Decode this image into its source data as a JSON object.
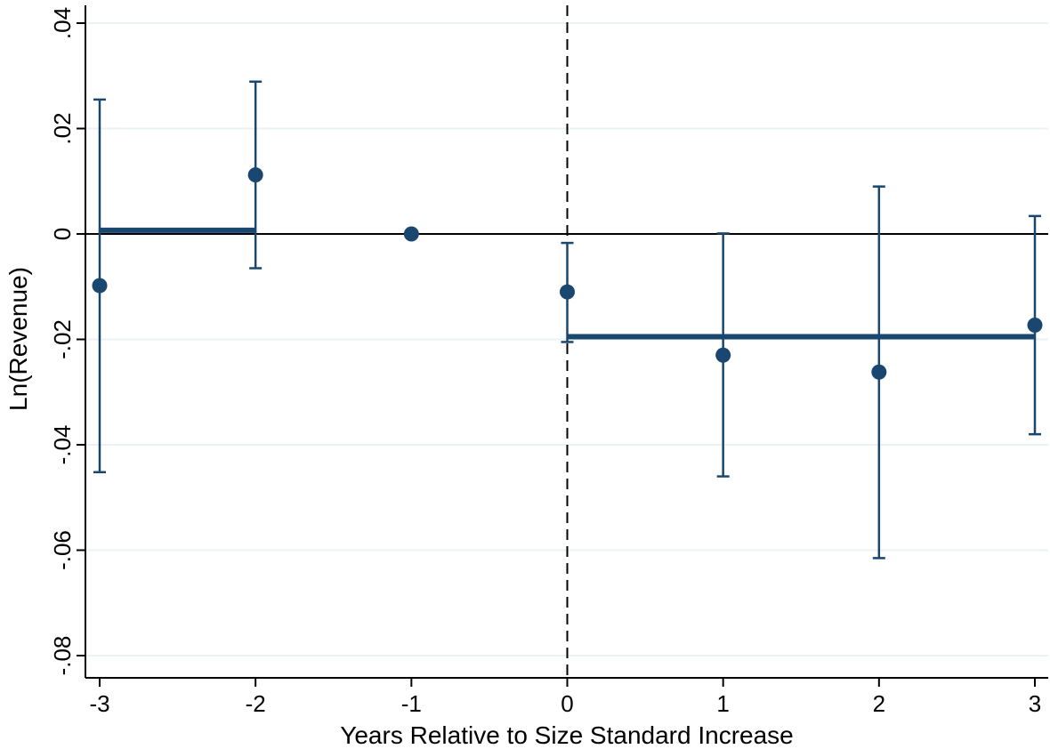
{
  "chart_data": {
    "type": "scatter",
    "title": "",
    "xlabel": "Years Relative to Size Standard Increase",
    "ylabel": "Ln(Revenue)",
    "xlim": [
      -3,
      3
    ],
    "ylim": [
      -0.08,
      0.04
    ],
    "x_ticks": [
      -3,
      -2,
      -1,
      0,
      1,
      2,
      3
    ],
    "x_tick_labels": [
      "-3",
      "-2",
      "-1",
      "0",
      "1",
      "2",
      "3"
    ],
    "y_ticks": [
      0.04,
      0.02,
      0,
      -0.02,
      -0.04,
      -0.06,
      -0.08
    ],
    "y_tick_labels": [
      ".04",
      ".02",
      "0",
      "-.02",
      "-.04",
      "-.06",
      "-.08"
    ],
    "grid": "horizontal",
    "legend": "none",
    "reference_lines": {
      "horizontal_y": 0,
      "vertical_x": 0,
      "vertical_style": "dashed"
    },
    "series": [
      {
        "points": [
          {
            "x": -3,
            "y": -0.0098,
            "ci_low": -0.0452,
            "ci_high": 0.0255
          },
          {
            "x": -2,
            "y": 0.0112,
            "ci_low": -0.0065,
            "ci_high": 0.0289
          },
          {
            "x": -1,
            "y": 0.0,
            "ci_low": null,
            "ci_high": null
          },
          {
            "x": 0,
            "y": -0.011,
            "ci_low": -0.0205,
            "ci_high": -0.0017
          },
          {
            "x": 1,
            "y": -0.023,
            "ci_low": -0.046,
            "ci_high": 0.0001
          },
          {
            "x": 2,
            "y": -0.0262,
            "ci_low": -0.0615,
            "ci_high": 0.009
          },
          {
            "x": 3,
            "y": -0.0173,
            "ci_low": -0.038,
            "ci_high": 0.0034
          }
        ]
      }
    ],
    "average_segments": [
      {
        "x_start": -3,
        "x_end": -2,
        "y": 0.0007
      },
      {
        "x_start": 0,
        "x_end": 3,
        "y": -0.0195
      }
    ],
    "colors": {
      "marker": "#1a476f",
      "grid": "#eaf2f3",
      "reference": "#000000"
    }
  }
}
